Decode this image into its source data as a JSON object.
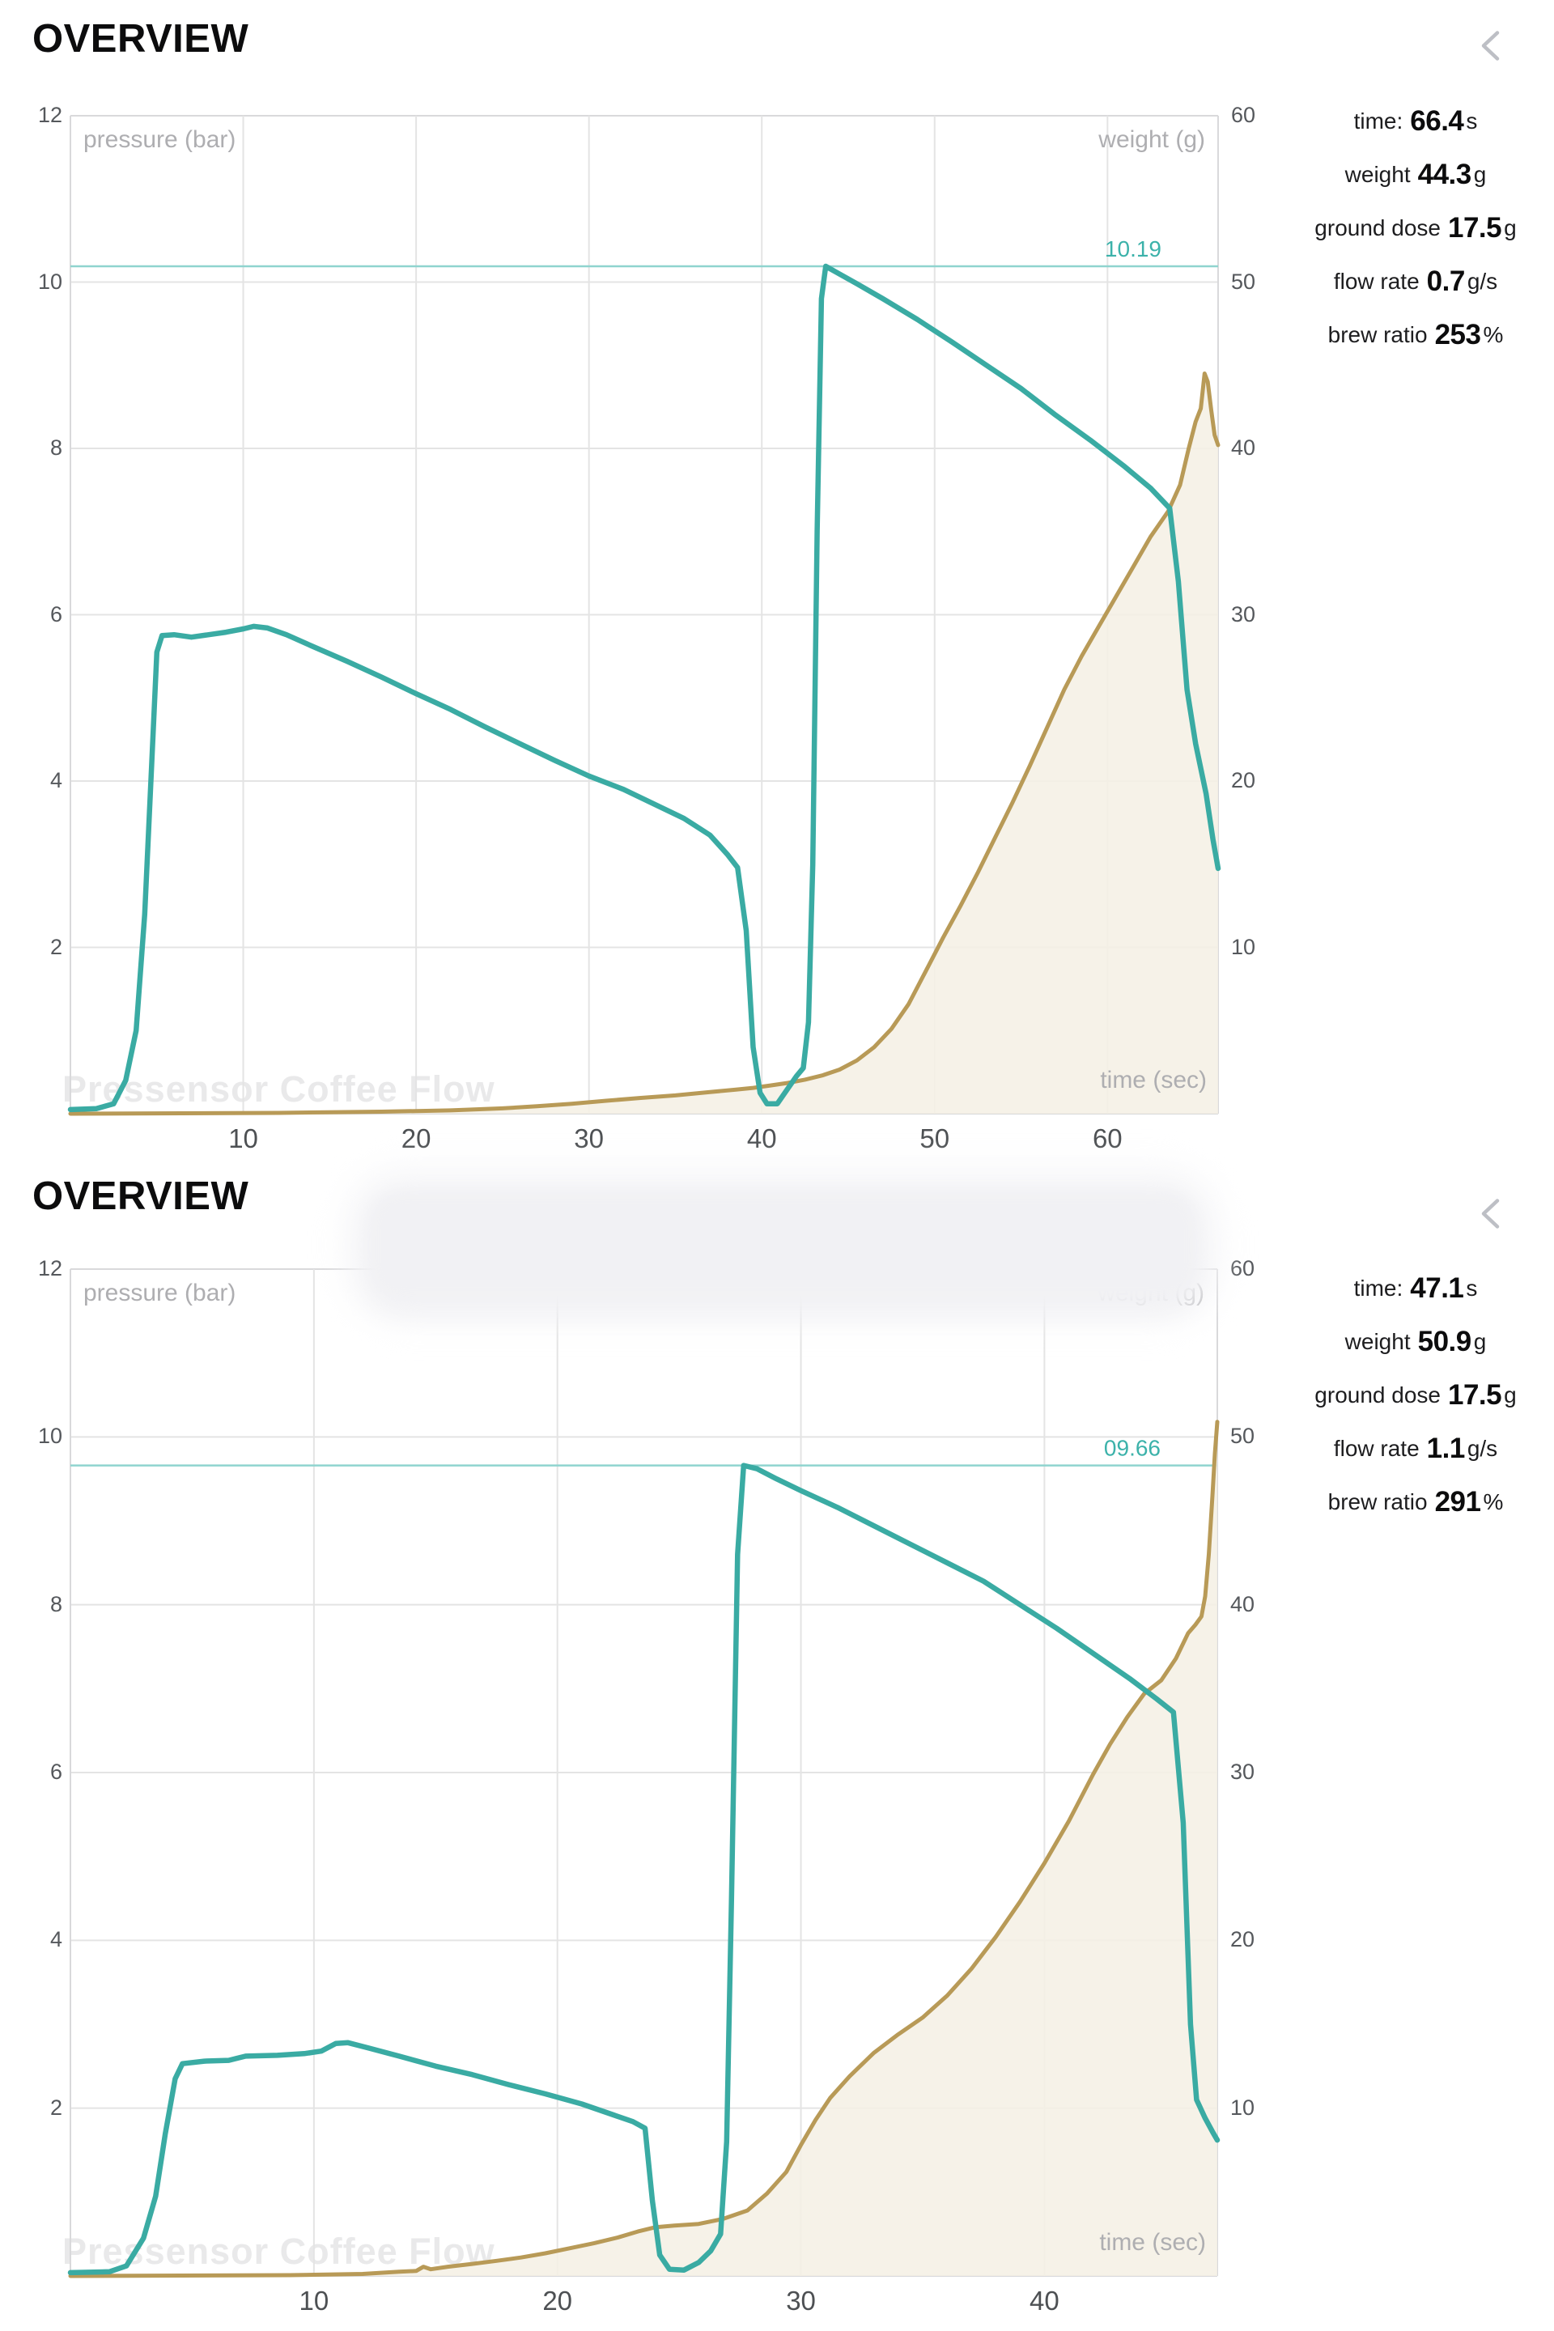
{
  "app": {
    "watermark": "Pressensor Coffee Flow"
  },
  "colors": {
    "pressure_line": "#3aaba3",
    "weight_line": "#b89a57",
    "weight_fill": "rgba(245,240,229,0.88)",
    "threshold_line": "#8fd4cf",
    "threshold_text": "#3cb2aa",
    "grid": "#e4e4e4",
    "axis_border": "#d9d9db",
    "tick_text": "#55585c",
    "muted_text": "#aeaeb1",
    "watermark_text": "#e9e9ea",
    "chevron": "#bdbfc5"
  },
  "sections": [
    {
      "title": "OVERVIEW",
      "back_icon": "chevron-left",
      "stats": [
        {
          "label": "time:",
          "value": "66.4",
          "unit": "s"
        },
        {
          "label": "weight",
          "value": "44.3",
          "unit": "g"
        },
        {
          "label": "ground dose",
          "value": "17.5",
          "unit": "g"
        },
        {
          "label": "flow rate",
          "value": "0.7",
          "unit": "g/s"
        },
        {
          "label": "brew ratio",
          "value": "253",
          "unit": "%"
        }
      ]
    },
    {
      "title": "OVERVIEW",
      "back_icon": "chevron-left",
      "redacted_region": true,
      "stats": [
        {
          "label": "time:",
          "value": "47.1",
          "unit": "s"
        },
        {
          "label": "weight",
          "value": "50.9",
          "unit": "g"
        },
        {
          "label": "ground dose",
          "value": "17.5",
          "unit": "g"
        },
        {
          "label": "flow rate",
          "value": "1.1",
          "unit": "g/s"
        },
        {
          "label": "brew ratio",
          "value": "291",
          "unit": "%"
        }
      ]
    }
  ],
  "chart_data": [
    {
      "type": "line",
      "title": "Pressensor Coffee Flow",
      "xlabel": "time (sec)",
      "ylabel_left": "pressure (bar)",
      "ylabel_right": "weight (g)",
      "x_ticks": [
        10,
        20,
        30,
        40,
        50,
        60
      ],
      "y_left_ticks": [
        12,
        10,
        8,
        6,
        4,
        2
      ],
      "y_right_ticks": [
        60,
        50,
        40,
        30,
        20,
        10
      ],
      "x_range": [
        0,
        66.4
      ],
      "y_left_range": [
        0,
        12
      ],
      "y_right_range": [
        0,
        60
      ],
      "grid": true,
      "legend_position": "none",
      "threshold": {
        "value": 10.19,
        "label": "10.19"
      },
      "series": [
        {
          "name": "pressure (bar)",
          "axis": "left",
          "points": [
            [
              0,
              0.05
            ],
            [
              1.5,
              0.06
            ],
            [
              2.5,
              0.12
            ],
            [
              3.2,
              0.4
            ],
            [
              3.8,
              1.0
            ],
            [
              4.3,
              2.4
            ],
            [
              4.7,
              4.2
            ],
            [
              5.0,
              5.55
            ],
            [
              5.3,
              5.75
            ],
            [
              6,
              5.76
            ],
            [
              7,
              5.73
            ],
            [
              8,
              5.76
            ],
            [
              9,
              5.79
            ],
            [
              10,
              5.83
            ],
            [
              10.6,
              5.86
            ],
            [
              11.4,
              5.84
            ],
            [
              12.5,
              5.76
            ],
            [
              14,
              5.62
            ],
            [
              16,
              5.44
            ],
            [
              18,
              5.25
            ],
            [
              20,
              5.05
            ],
            [
              22,
              4.86
            ],
            [
              24,
              4.65
            ],
            [
              26,
              4.45
            ],
            [
              28,
              4.25
            ],
            [
              30,
              4.06
            ],
            [
              32,
              3.9
            ],
            [
              34,
              3.7
            ],
            [
              35.5,
              3.55
            ],
            [
              37,
              3.35
            ],
            [
              38,
              3.12
            ],
            [
              38.6,
              2.96
            ],
            [
              39.1,
              2.2
            ],
            [
              39.5,
              0.8
            ],
            [
              39.9,
              0.25
            ],
            [
              40.3,
              0.12
            ],
            [
              40.9,
              0.12
            ],
            [
              41.5,
              0.3
            ],
            [
              42,
              0.45
            ],
            [
              42.4,
              0.55
            ],
            [
              42.7,
              1.1
            ],
            [
              42.95,
              3.0
            ],
            [
              43.2,
              7.0
            ],
            [
              43.45,
              9.8
            ],
            [
              43.7,
              10.19
            ],
            [
              44.3,
              10.12
            ],
            [
              45.5,
              9.98
            ],
            [
              47,
              9.8
            ],
            [
              49,
              9.55
            ],
            [
              51,
              9.28
            ],
            [
              53,
              9.0
            ],
            [
              55,
              8.72
            ],
            [
              57,
              8.4
            ],
            [
              59,
              8.1
            ],
            [
              61,
              7.78
            ],
            [
              62.5,
              7.52
            ],
            [
              63.6,
              7.28
            ],
            [
              64.1,
              6.4
            ],
            [
              64.6,
              5.1
            ],
            [
              65.1,
              4.45
            ],
            [
              65.7,
              3.85
            ],
            [
              66.1,
              3.3
            ],
            [
              66.4,
              2.95
            ]
          ]
        },
        {
          "name": "weight (g)",
          "axis": "right",
          "filled": true,
          "points": [
            [
              0,
              0
            ],
            [
              12,
              0.05
            ],
            [
              18,
              0.12
            ],
            [
              22,
              0.2
            ],
            [
              25,
              0.32
            ],
            [
              27,
              0.45
            ],
            [
              29,
              0.6
            ],
            [
              31,
              0.78
            ],
            [
              33,
              0.95
            ],
            [
              35,
              1.1
            ],
            [
              37,
              1.3
            ],
            [
              38.5,
              1.45
            ],
            [
              39.5,
              1.55
            ],
            [
              40.5,
              1.7
            ],
            [
              41.5,
              1.85
            ],
            [
              42.5,
              2.05
            ],
            [
              43.5,
              2.3
            ],
            [
              44.5,
              2.65
            ],
            [
              45.5,
              3.2
            ],
            [
              46.5,
              4.0
            ],
            [
              47.5,
              5.1
            ],
            [
              48.5,
              6.6
            ],
            [
              49.5,
              8.6
            ],
            [
              50.5,
              10.6
            ],
            [
              51.5,
              12.5
            ],
            [
              52.5,
              14.5
            ],
            [
              53.5,
              16.6
            ],
            [
              54.5,
              18.7
            ],
            [
              55.5,
              20.9
            ],
            [
              56.5,
              23.2
            ],
            [
              57.5,
              25.5
            ],
            [
              58.5,
              27.5
            ],
            [
              59.5,
              29.3
            ],
            [
              60.5,
              31.1
            ],
            [
              61.5,
              32.9
            ],
            [
              62.5,
              34.7
            ],
            [
              63.5,
              36.2
            ],
            [
              64.2,
              37.8
            ],
            [
              64.7,
              40.0
            ],
            [
              65.1,
              41.6
            ],
            [
              65.4,
              42.4
            ],
            [
              65.62,
              44.5
            ],
            [
              65.8,
              44.0
            ],
            [
              66.0,
              42.3
            ],
            [
              66.2,
              40.8
            ],
            [
              66.4,
              40.2
            ]
          ]
        }
      ]
    },
    {
      "type": "line",
      "title": "Pressensor Coffee Flow",
      "xlabel": "time (sec)",
      "ylabel_left": "pressure (bar)",
      "ylabel_right": "weight (g)",
      "x_ticks": [
        10,
        20,
        30,
        40
      ],
      "y_left_ticks": [
        12,
        10,
        8,
        6,
        4,
        2
      ],
      "y_right_ticks": [
        60,
        50,
        40,
        30,
        20,
        10
      ],
      "x_range": [
        0,
        47.1
      ],
      "y_left_range": [
        0,
        12
      ],
      "y_right_range": [
        0,
        60
      ],
      "grid": true,
      "legend_position": "none",
      "threshold": {
        "value": 9.66,
        "label": "09.66"
      },
      "series": [
        {
          "name": "pressure (bar)",
          "axis": "left",
          "points": [
            [
              0,
              0.04
            ],
            [
              1.6,
              0.05
            ],
            [
              2.3,
              0.12
            ],
            [
              3.0,
              0.45
            ],
            [
              3.5,
              0.95
            ],
            [
              3.9,
              1.7
            ],
            [
              4.3,
              2.35
            ],
            [
              4.6,
              2.53
            ],
            [
              5.5,
              2.56
            ],
            [
              6.5,
              2.57
            ],
            [
              7.2,
              2.62
            ],
            [
              8.5,
              2.63
            ],
            [
              9.6,
              2.65
            ],
            [
              10.3,
              2.68
            ],
            [
              10.9,
              2.77
            ],
            [
              11.4,
              2.78
            ],
            [
              12.2,
              2.72
            ],
            [
              13.5,
              2.62
            ],
            [
              15,
              2.5
            ],
            [
              16.5,
              2.4
            ],
            [
              18,
              2.28
            ],
            [
              19.5,
              2.17
            ],
            [
              21,
              2.05
            ],
            [
              22.3,
              1.92
            ],
            [
              23.1,
              1.84
            ],
            [
              23.6,
              1.76
            ],
            [
              23.9,
              0.9
            ],
            [
              24.2,
              0.25
            ],
            [
              24.6,
              0.08
            ],
            [
              25.2,
              0.07
            ],
            [
              25.8,
              0.16
            ],
            [
              26.3,
              0.3
            ],
            [
              26.7,
              0.5
            ],
            [
              26.95,
              1.6
            ],
            [
              27.15,
              4.5
            ],
            [
              27.4,
              8.6
            ],
            [
              27.65,
              9.66
            ],
            [
              28.2,
              9.62
            ],
            [
              29,
              9.5
            ],
            [
              30,
              9.36
            ],
            [
              31.5,
              9.16
            ],
            [
              33,
              8.94
            ],
            [
              34.5,
              8.72
            ],
            [
              36,
              8.5
            ],
            [
              37.5,
              8.28
            ],
            [
              39,
              8.0
            ],
            [
              40.5,
              7.72
            ],
            [
              42,
              7.42
            ],
            [
              43.5,
              7.12
            ],
            [
              44.6,
              6.88
            ],
            [
              45.3,
              6.72
            ],
            [
              45.7,
              5.4
            ],
            [
              46.0,
              3.0
            ],
            [
              46.25,
              2.1
            ],
            [
              46.6,
              1.88
            ],
            [
              46.9,
              1.72
            ],
            [
              47.1,
              1.62
            ]
          ]
        },
        {
          "name": "weight (g)",
          "axis": "right",
          "filled": true,
          "points": [
            [
              0,
              0
            ],
            [
              9,
              0.05
            ],
            [
              12,
              0.12
            ],
            [
              13.5,
              0.25
            ],
            [
              14.2,
              0.3
            ],
            [
              14.5,
              0.55
            ],
            [
              14.8,
              0.4
            ],
            [
              15.5,
              0.55
            ],
            [
              16.5,
              0.72
            ],
            [
              17.5,
              0.9
            ],
            [
              18.5,
              1.1
            ],
            [
              19.5,
              1.35
            ],
            [
              20.5,
              1.65
            ],
            [
              21.5,
              1.95
            ],
            [
              22.5,
              2.3
            ],
            [
              23.3,
              2.65
            ],
            [
              24,
              2.9
            ],
            [
              24.8,
              3.0
            ],
            [
              25.8,
              3.1
            ],
            [
              26.8,
              3.4
            ],
            [
              27.8,
              3.9
            ],
            [
              28.6,
              4.9
            ],
            [
              29.4,
              6.2
            ],
            [
              30,
              7.8
            ],
            [
              30.6,
              9.3
            ],
            [
              31.2,
              10.6
            ],
            [
              32,
              11.9
            ],
            [
              33,
              13.3
            ],
            [
              34,
              14.4
            ],
            [
              35,
              15.4
            ],
            [
              36,
              16.7
            ],
            [
              37,
              18.3
            ],
            [
              38,
              20.2
            ],
            [
              39,
              22.3
            ],
            [
              40,
              24.6
            ],
            [
              41,
              27.1
            ],
            [
              42,
              29.9
            ],
            [
              42.7,
              31.7
            ],
            [
              43.4,
              33.3
            ],
            [
              44.1,
              34.7
            ],
            [
              44.8,
              35.5
            ],
            [
              45.4,
              36.8
            ],
            [
              45.9,
              38.3
            ],
            [
              46.2,
              38.8
            ],
            [
              46.45,
              39.3
            ],
            [
              46.6,
              40.5
            ],
            [
              46.75,
              43.0
            ],
            [
              46.9,
              46.5
            ],
            [
              47.0,
              49.0
            ],
            [
              47.1,
              50.9
            ]
          ]
        }
      ]
    }
  ]
}
